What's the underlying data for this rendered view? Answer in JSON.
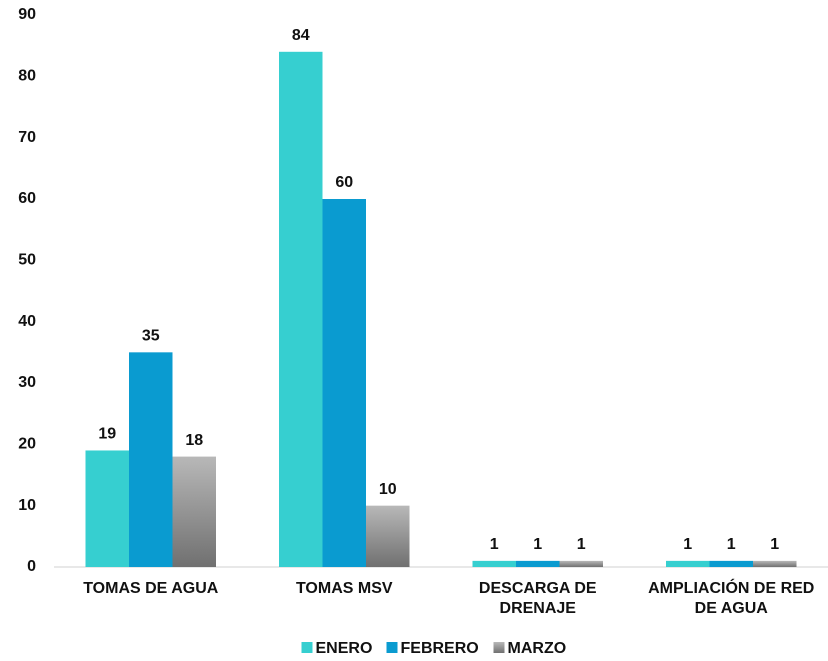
{
  "chart_data": {
    "type": "bar",
    "categories": [
      "TOMAS DE AGUA",
      "TOMAS MSV",
      "DESCARGA DE DRENAJE",
      "AMPLIACIÓN DE RED DE AGUA"
    ],
    "series": [
      {
        "name": "ENERO",
        "color": "#36cfd0",
        "values": [
          19,
          84,
          1,
          1
        ]
      },
      {
        "name": "FEBRERO",
        "color": "#0a9bd0",
        "values": [
          35,
          60,
          1,
          1
        ]
      },
      {
        "name": "MARZO",
        "color": "#9a9a9a",
        "values": [
          18,
          10,
          1,
          1
        ]
      }
    ],
    "ylim": [
      0,
      90
    ],
    "yticks": [
      0,
      10,
      20,
      30,
      40,
      50,
      60,
      70,
      80,
      90
    ],
    "grid": false,
    "legend": "bottom"
  }
}
